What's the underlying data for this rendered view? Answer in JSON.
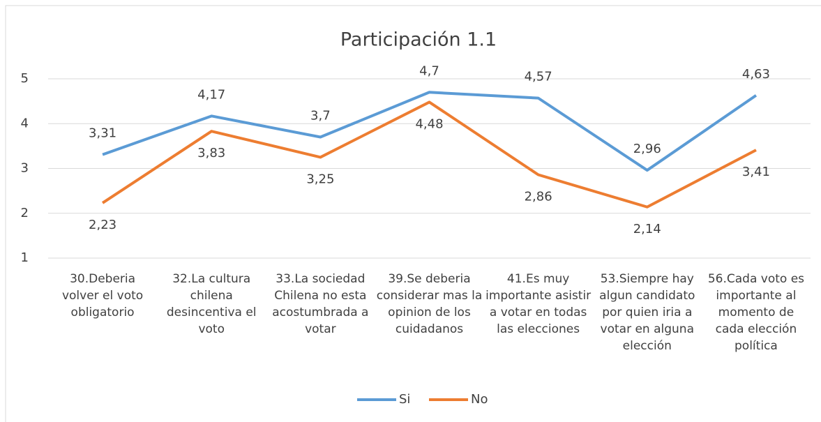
{
  "chart_data": {
    "type": "line",
    "title": "Participación 1.1",
    "categories": [
      "30.Deberia volver el voto obligatorio",
      "32.La cultura chilena desincentiva el voto",
      "33.La sociedad Chilena no esta acostumbrada a votar",
      "39.Se deberia considerar mas la opinion de los cuidadanos",
      "41.Es muy importante asistir a votar en todas las elecciones",
      "53.Siempre hay algun candidato por quien iria a votar en alguna elección",
      "56.Cada voto es importante al momento de cada elección política"
    ],
    "series": [
      {
        "name": "Si",
        "color": "#5b9bd5",
        "values": [
          3.31,
          4.17,
          3.7,
          4.7,
          4.57,
          2.96,
          4.63
        ],
        "value_labels": [
          "3,31",
          "4,17",
          "3,7",
          "4,7",
          "4,57",
          "2,96",
          "4,63"
        ]
      },
      {
        "name": "No",
        "color": "#ed7d31",
        "values": [
          2.23,
          3.83,
          3.25,
          4.48,
          2.86,
          2.14,
          3.41
        ],
        "value_labels": [
          "2,23",
          "3,83",
          "3,25",
          "4,48",
          "2,86",
          "2,14",
          "3,41"
        ]
      }
    ],
    "ylim": [
      1,
      5
    ],
    "yticks": [
      1,
      2,
      3,
      4,
      5
    ],
    "grid": true,
    "legend": "bottom"
  }
}
